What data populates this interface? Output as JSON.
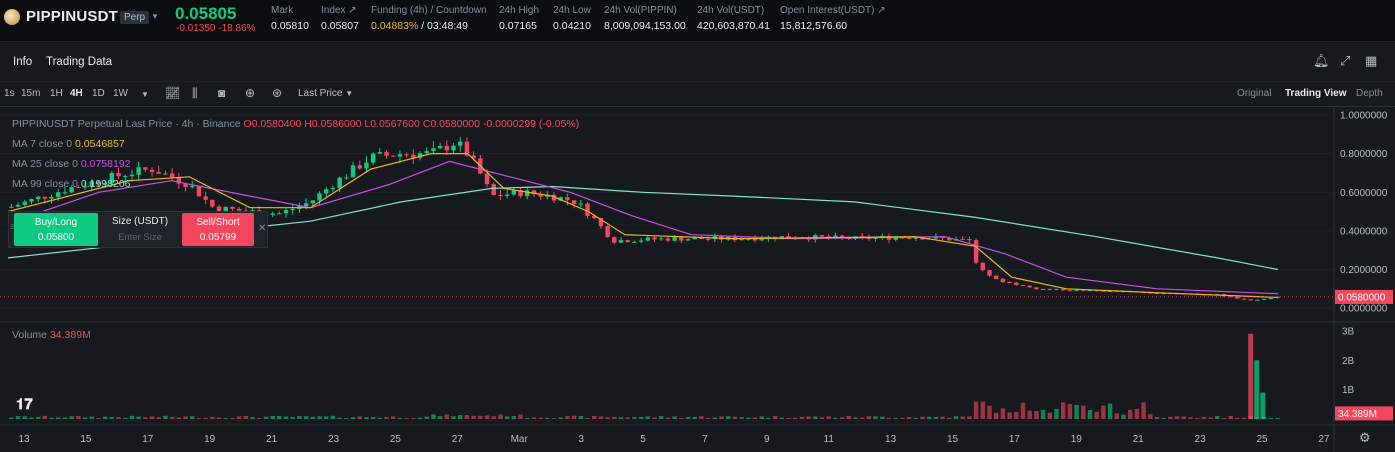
{
  "header": {
    "symbol": "PIPPINUSDT",
    "badge": "Perp",
    "last_price": "0.05805",
    "change": "-0.01350 -18.86%",
    "stats": [
      {
        "label": "Mark",
        "value": "0.05810"
      },
      {
        "label": "Index",
        "value": "0.05807"
      },
      {
        "label": "Funding (4h) / Countdown",
        "value_highlight": "0.04883%",
        "value_rest": " / 03:48:49"
      },
      {
        "label": "24h High",
        "value": "0.07165"
      },
      {
        "label": "24h Low",
        "value": "0.04210"
      },
      {
        "label": "24h Vol(PIPPIN)",
        "value": "8,009,094,153.00"
      },
      {
        "label": "24h Vol(USDT)",
        "value": "420,603,870.41"
      },
      {
        "label": "Open Interest(USDT)",
        "value": "15,812,576.60"
      }
    ]
  },
  "subnav": {
    "tabs": [
      "Info",
      "Trading Data"
    ]
  },
  "toolbar": {
    "timeframes": [
      "1s",
      "15m",
      "1H",
      "4H",
      "1D",
      "1W"
    ],
    "active_timeframe": "4H",
    "price_type": "Last Price",
    "views": [
      "Original",
      "Trading View",
      "Depth"
    ],
    "active_view": "Trading View"
  },
  "legend": {
    "title": "PIPPINUSDT Perpetual Last Price · 4h · Binance",
    "ohlc": "O0.0580400 H0.0586000 L0.0567600 C0.0580000 -0.0000299 (-0.05%)",
    "ma7_label": "MA 7 close 0",
    "ma7_value": "0.0546857",
    "ma25_label": "MA 25 close 0",
    "ma25_value": "0.0758192",
    "ma99_label": "MA 99 close 0",
    "ma99_value": "0.1998206"
  },
  "trade": {
    "buy_label": "Buy/Long",
    "buy_price": "0.05800",
    "size_label": "Size (USDT)",
    "size_placeholder": "Enter Size",
    "sell_label": "Sell/Short",
    "sell_price": "0.05799"
  },
  "volume": {
    "label": "Volume",
    "value": "34.389M"
  },
  "chart_data": {
    "type": "candlestick",
    "price_axis_ticks": [
      "1.0000000",
      "0.8000000",
      "0.6000000",
      "0.4000000",
      "0.2000000",
      "0.0000000"
    ],
    "price_axis_values": [
      1.0,
      0.8,
      0.6,
      0.4,
      0.2,
      0.0
    ],
    "price_ylim": [
      -0.02,
      1.0
    ],
    "current_price_label": "0.0580000",
    "current_price": 0.058,
    "volume_axis_ticks": [
      "3B",
      "2B",
      "1B"
    ],
    "volume_axis_values": [
      3,
      2,
      1
    ],
    "volume_current_label": "34.389M",
    "date_labels": [
      "13",
      "15",
      "17",
      "19",
      "21",
      "23",
      "25",
      "27",
      "Mar",
      "3",
      "5",
      "7",
      "9",
      "11",
      "13",
      "15",
      "17",
      "19",
      "21",
      "23",
      "25",
      "27"
    ],
    "close_trend": [
      {
        "x": 0.0,
        "y": 0.52
      },
      {
        "x": 1.0,
        "y": 0.62
      },
      {
        "x": 2.0,
        "y": 0.7
      },
      {
        "x": 2.4,
        "y": 0.72
      },
      {
        "x": 3.0,
        "y": 0.64
      },
      {
        "x": 3.4,
        "y": 0.52
      },
      {
        "x": 4.0,
        "y": 0.5
      },
      {
        "x": 4.5,
        "y": 0.49
      },
      {
        "x": 5.0,
        "y": 0.55
      },
      {
        "x": 5.4,
        "y": 0.65
      },
      {
        "x": 6.0,
        "y": 0.78
      },
      {
        "x": 6.5,
        "y": 0.8
      },
      {
        "x": 7.0,
        "y": 0.8
      },
      {
        "x": 7.4,
        "y": 0.86
      },
      {
        "x": 7.6,
        "y": 0.8
      },
      {
        "x": 7.8,
        "y": 0.7
      },
      {
        "x": 8.0,
        "y": 0.58
      },
      {
        "x": 8.5,
        "y": 0.6
      },
      {
        "x": 9.0,
        "y": 0.58
      },
      {
        "x": 9.4,
        "y": 0.55
      },
      {
        "x": 9.7,
        "y": 0.46
      },
      {
        "x": 10.0,
        "y": 0.35
      },
      {
        "x": 11.0,
        "y": 0.36
      },
      {
        "x": 12.0,
        "y": 0.36
      },
      {
        "x": 13.0,
        "y": 0.37
      },
      {
        "x": 14.0,
        "y": 0.36
      },
      {
        "x": 15.0,
        "y": 0.37
      },
      {
        "x": 15.9,
        "y": 0.35
      },
      {
        "x": 16.0,
        "y": 0.24
      },
      {
        "x": 16.3,
        "y": 0.15
      },
      {
        "x": 17.0,
        "y": 0.1
      },
      {
        "x": 18.0,
        "y": 0.09
      },
      {
        "x": 19.0,
        "y": 0.08
      },
      {
        "x": 20.0,
        "y": 0.07
      },
      {
        "x": 20.5,
        "y": 0.04
      },
      {
        "x": 21.0,
        "y": 0.058
      }
    ],
    "ma7": [
      {
        "x": 0.0,
        "y": 0.5
      },
      {
        "x": 2.0,
        "y": 0.66
      },
      {
        "x": 3.0,
        "y": 0.68
      },
      {
        "x": 4.0,
        "y": 0.52
      },
      {
        "x": 5.0,
        "y": 0.52
      },
      {
        "x": 6.0,
        "y": 0.72
      },
      {
        "x": 7.0,
        "y": 0.8
      },
      {
        "x": 7.6,
        "y": 0.8
      },
      {
        "x": 8.2,
        "y": 0.62
      },
      {
        "x": 9.0,
        "y": 0.58
      },
      {
        "x": 9.6,
        "y": 0.5
      },
      {
        "x": 10.2,
        "y": 0.38
      },
      {
        "x": 12.0,
        "y": 0.36
      },
      {
        "x": 15.0,
        "y": 0.37
      },
      {
        "x": 16.0,
        "y": 0.32
      },
      {
        "x": 16.6,
        "y": 0.16
      },
      {
        "x": 17.5,
        "y": 0.1
      },
      {
        "x": 19.0,
        "y": 0.08
      },
      {
        "x": 20.6,
        "y": 0.06
      },
      {
        "x": 21.0,
        "y": 0.055
      }
    ],
    "ma25": [
      {
        "x": 0.0,
        "y": 0.44
      },
      {
        "x": 1.5,
        "y": 0.6
      },
      {
        "x": 2.7,
        "y": 0.66
      },
      {
        "x": 4.0,
        "y": 0.58
      },
      {
        "x": 5.0,
        "y": 0.52
      },
      {
        "x": 6.3,
        "y": 0.64
      },
      {
        "x": 7.3,
        "y": 0.76
      },
      {
        "x": 8.3,
        "y": 0.68
      },
      {
        "x": 9.3,
        "y": 0.6
      },
      {
        "x": 10.3,
        "y": 0.48
      },
      {
        "x": 11.3,
        "y": 0.38
      },
      {
        "x": 13.0,
        "y": 0.36
      },
      {
        "x": 15.5,
        "y": 0.37
      },
      {
        "x": 16.5,
        "y": 0.28
      },
      {
        "x": 17.5,
        "y": 0.16
      },
      {
        "x": 19.0,
        "y": 0.1
      },
      {
        "x": 21.0,
        "y": 0.075
      }
    ],
    "ma99": [
      {
        "x": 0.0,
        "y": 0.26
      },
      {
        "x": 2.0,
        "y": 0.33
      },
      {
        "x": 3.5,
        "y": 0.4
      },
      {
        "x": 5.0,
        "y": 0.45
      },
      {
        "x": 6.5,
        "y": 0.55
      },
      {
        "x": 8.0,
        "y": 0.62
      },
      {
        "x": 9.0,
        "y": 0.63
      },
      {
        "x": 10.5,
        "y": 0.6
      },
      {
        "x": 12.0,
        "y": 0.58
      },
      {
        "x": 14.0,
        "y": 0.55
      },
      {
        "x": 16.0,
        "y": 0.47
      },
      {
        "x": 18.0,
        "y": 0.37
      },
      {
        "x": 20.0,
        "y": 0.26
      },
      {
        "x": 21.0,
        "y": 0.2
      }
    ],
    "volume_highlights": [
      {
        "x": 20.55,
        "value": 2.9
      },
      {
        "x": 20.65,
        "value": 2.0
      },
      {
        "x": 20.75,
        "value": 0.9
      }
    ]
  },
  "colors": {
    "up": "#0ecb81",
    "down": "#f6465d",
    "ma7": "#f0b90b",
    "ma25": "#c850e0",
    "ma99": "#7fe3d0",
    "background": "#161a1e"
  },
  "icons": [
    "bell-icon",
    "expand-icon",
    "screenshot-icon",
    "grid-icon",
    "indicator-icon",
    "settings-icon",
    "tradingview-logo"
  ]
}
